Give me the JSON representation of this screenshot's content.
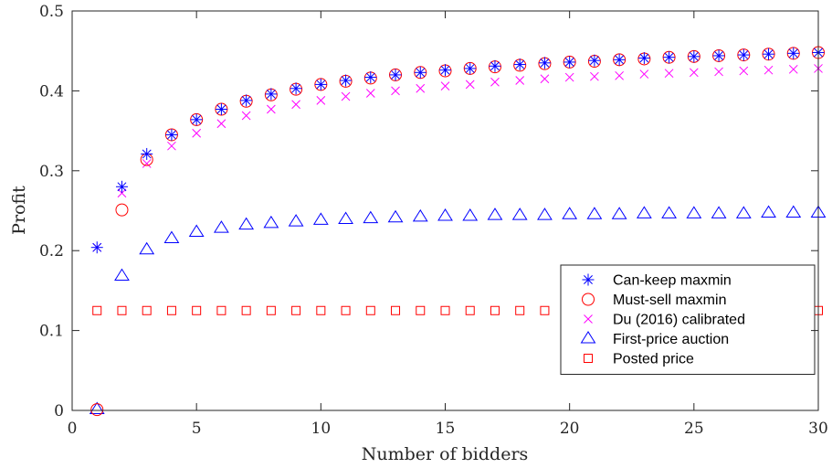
{
  "chart_data": {
    "type": "scatter",
    "xlabel": "Number of bidders",
    "ylabel": "Profit",
    "xlim": [
      0,
      30
    ],
    "ylim": [
      0,
      0.5
    ],
    "xticks": [
      0,
      5,
      10,
      15,
      20,
      25,
      30
    ],
    "yticks": [
      0,
      0.1,
      0.2,
      0.3,
      0.4,
      0.5
    ],
    "xtick_labels": [
      "0",
      "5",
      "10",
      "15",
      "20",
      "25",
      "30"
    ],
    "ytick_labels": [
      "0",
      "0.1",
      "0.2",
      "0.3",
      "0.4",
      "0.5"
    ],
    "grid": false,
    "legend_position": "bottom-right",
    "x": [
      1,
      2,
      3,
      4,
      5,
      6,
      7,
      8,
      9,
      10,
      11,
      12,
      13,
      14,
      15,
      16,
      17,
      18,
      19,
      20,
      21,
      22,
      23,
      24,
      25,
      26,
      27,
      28,
      29,
      30
    ],
    "series": [
      {
        "name": "Can-keep maxmin",
        "marker": "asterisk",
        "color": "#0000ff",
        "values": [
          0.204,
          0.28,
          0.321,
          0.345,
          0.364,
          0.377,
          0.388,
          0.396,
          0.403,
          0.408,
          0.413,
          0.417,
          0.42,
          0.423,
          0.426,
          0.428,
          0.431,
          0.433,
          0.435,
          0.436,
          0.438,
          0.439,
          0.441,
          0.442,
          0.443,
          0.444,
          0.445,
          0.446,
          0.447,
          0.448
        ]
      },
      {
        "name": "Must-sell maxmin",
        "marker": "circle",
        "color": "#ff0000",
        "values": [
          0.001,
          0.251,
          0.314,
          0.345,
          0.364,
          0.377,
          0.387,
          0.395,
          0.402,
          0.408,
          0.412,
          0.416,
          0.42,
          0.423,
          0.425,
          0.428,
          0.43,
          0.432,
          0.434,
          0.436,
          0.437,
          0.439,
          0.44,
          0.442,
          0.443,
          0.444,
          0.445,
          0.446,
          0.447,
          0.448
        ]
      },
      {
        "name": "Du (2016) calibrated",
        "marker": "cross",
        "color": "#ff00ff",
        "values": [
          0.204,
          0.272,
          0.309,
          0.331,
          0.347,
          0.359,
          0.369,
          0.377,
          0.383,
          0.388,
          0.393,
          0.397,
          0.4,
          0.403,
          0.406,
          0.408,
          0.411,
          0.413,
          0.415,
          0.417,
          0.418,
          0.419,
          0.421,
          0.422,
          0.423,
          0.424,
          0.425,
          0.426,
          0.427,
          0.428
        ]
      },
      {
        "name": "First-price auction",
        "marker": "triangle",
        "color": "#0000ff",
        "values": [
          0.0,
          0.167,
          0.2,
          0.214,
          0.222,
          0.227,
          0.231,
          0.233,
          0.235,
          0.237,
          0.238,
          0.239,
          0.24,
          0.241,
          0.242,
          0.242,
          0.243,
          0.243,
          0.243,
          0.244,
          0.244,
          0.244,
          0.245,
          0.245,
          0.245,
          0.245,
          0.245,
          0.246,
          0.246,
          0.246
        ]
      },
      {
        "name": "Posted price",
        "marker": "square",
        "color": "#ff0000",
        "values": [
          0.125,
          0.125,
          0.125,
          0.125,
          0.125,
          0.125,
          0.125,
          0.125,
          0.125,
          0.125,
          0.125,
          0.125,
          0.125,
          0.125,
          0.125,
          0.125,
          0.125,
          0.125,
          0.125,
          0.125,
          0.125,
          0.125,
          0.125,
          0.125,
          0.125,
          0.125,
          0.125,
          0.125,
          0.125,
          0.125
        ]
      }
    ]
  }
}
